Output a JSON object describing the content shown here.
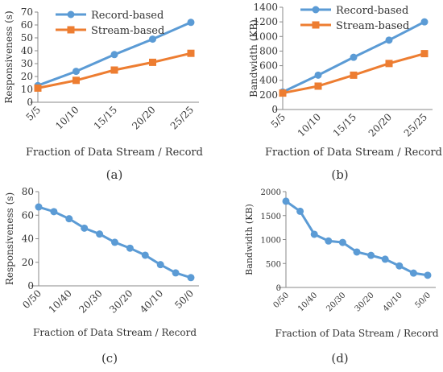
{
  "chart_data": [
    {
      "type": "line",
      "panel_label": "(a)",
      "categories": [
        "5/5",
        "10/10",
        "15/15",
        "20/20",
        "25/25"
      ],
      "series": [
        {
          "name": "Record-based",
          "values": [
            13,
            24,
            37,
            49,
            62
          ]
        },
        {
          "name": "Stream-based",
          "values": [
            11,
            17,
            25,
            31,
            38
          ]
        }
      ],
      "xlabel": "Fraction of Data Stream / Record",
      "ylabel": "Responsiveness (s)",
      "ylim": [
        0,
        70
      ],
      "yticks": [
        0,
        10,
        20,
        30,
        40,
        50,
        60,
        70
      ],
      "legend": "top-left",
      "grid": false
    },
    {
      "type": "line",
      "panel_label": "(b)",
      "categories": [
        "5/5",
        "10/10",
        "15/15",
        "20/20",
        "25/25"
      ],
      "series": [
        {
          "name": "Record-based",
          "values": [
            240,
            470,
            715,
            950,
            1200
          ]
        },
        {
          "name": "Stream-based",
          "values": [
            225,
            320,
            470,
            630,
            765
          ]
        }
      ],
      "xlabel": "Fraction of Data Stream / Record",
      "ylabel": "Bandwidth (KB)",
      "ylim": [
        0,
        1400
      ],
      "yticks": [
        0,
        200,
        400,
        600,
        800,
        1000,
        1200,
        1400
      ],
      "legend": "top-left",
      "grid": false
    },
    {
      "type": "line",
      "panel_label": "(c)",
      "categories": [
        "0/50",
        "5/45",
        "10/40",
        "15/35",
        "20/30",
        "25/25",
        "30/20",
        "35/15",
        "40/10",
        "45/5",
        "50/0"
      ],
      "tick_labels": [
        "0/50",
        "",
        "10/40",
        "",
        "20/30",
        "",
        "30/20",
        "",
        "40/10",
        "",
        "50/0"
      ],
      "series": [
        {
          "name": "",
          "values": [
            67,
            63,
            57,
            49,
            44,
            37,
            32,
            26,
            18,
            11,
            7
          ]
        }
      ],
      "xlabel": "Fraction of Data Stream / Record",
      "ylabel": "Responsiveness (s)",
      "ylim": [
        0,
        80
      ],
      "yticks": [
        0,
        20,
        40,
        60,
        80
      ],
      "grid": false
    },
    {
      "type": "line",
      "panel_label": "(d)",
      "categories": [
        "0/50",
        "5/45",
        "10/40",
        "15/35",
        "20/30",
        "25/25",
        "30/20",
        "35/15",
        "40/10",
        "45/5",
        "50/0"
      ],
      "tick_labels": [
        "0/50",
        "",
        "10/40",
        "",
        "20/30",
        "",
        "30/20",
        "",
        "40/10",
        "",
        "50/0"
      ],
      "series": [
        {
          "name": "",
          "values": [
            1800,
            1590,
            1110,
            970,
            940,
            740,
            670,
            590,
            450,
            300,
            255
          ]
        }
      ],
      "xlabel": "Fraction of Data Stream / Record",
      "ylabel": "Bandwidth (KB)",
      "ylim": [
        0,
        2000
      ],
      "yticks": [
        0,
        500,
        1000,
        1500,
        2000
      ],
      "grid": false
    }
  ],
  "colors": {
    "record_based": "#5b9bd5",
    "stream_based": "#ed7d31",
    "single_series": "#5b9bd5",
    "axis": "#888888",
    "text": "#333333"
  }
}
